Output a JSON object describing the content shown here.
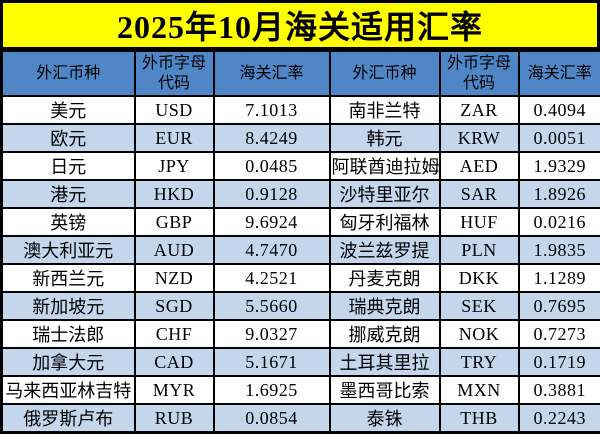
{
  "title": "2025年10月海关适用汇率",
  "chart_data": {
    "type": "table",
    "title": "2025年10月海关适用汇率",
    "columns": [
      "外汇币种",
      "外币字母代码",
      "海关汇率",
      "外汇币种",
      "外币字母代码",
      "海关汇率"
    ],
    "rows": [
      [
        "美元",
        "USD",
        "7.1013",
        "南非兰特",
        "ZAR",
        "0.4094"
      ],
      [
        "欧元",
        "EUR",
        "8.4249",
        "韩元",
        "KRW",
        "0.0051"
      ],
      [
        "日元",
        "JPY",
        "0.0485",
        "阿联酋迪拉姆",
        "AED",
        "1.9329"
      ],
      [
        "港元",
        "HKD",
        "0.9128",
        "沙特里亚尔",
        "SAR",
        "1.8926"
      ],
      [
        "英镑",
        "GBP",
        "9.6924",
        "匈牙利福林",
        "HUF",
        "0.0216"
      ],
      [
        "澳大利亚元",
        "AUD",
        "4.7470",
        "波兰兹罗提",
        "PLN",
        "1.9835"
      ],
      [
        "新西兰元",
        "NZD",
        "4.2521",
        "丹麦克朗",
        "DKK",
        "1.1289"
      ],
      [
        "新加坡元",
        "SGD",
        "5.5660",
        "瑞典克朗",
        "SEK",
        "0.7695"
      ],
      [
        "瑞士法郎",
        "CHF",
        "9.0327",
        "挪威克朗",
        "NOK",
        "0.7273"
      ],
      [
        "加拿大元",
        "CAD",
        "5.1671",
        "土耳其里拉",
        "TRY",
        "0.1719"
      ],
      [
        "马来西亚林吉特",
        "MYR",
        "1.6925",
        "墨西哥比索",
        "MXN",
        "0.3881"
      ],
      [
        "俄罗斯卢布",
        "RUB",
        "0.0854",
        "泰铢",
        "THB",
        "0.2243"
      ]
    ]
  },
  "colors": {
    "title_bg": "#FFFF00",
    "header_bg": "#4F86C6",
    "alt_row_bg": "#C3D6EC",
    "border": "#000000",
    "text": "#000000"
  }
}
